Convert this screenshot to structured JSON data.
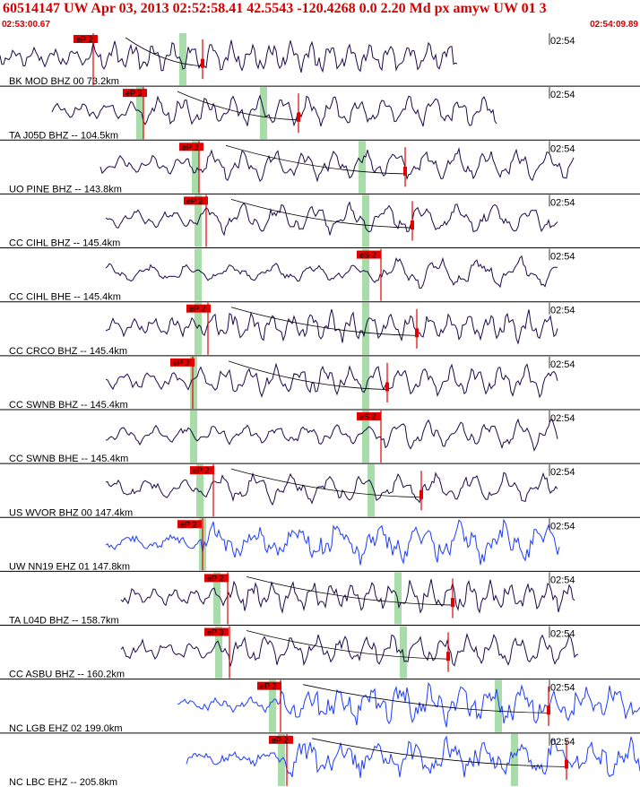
{
  "header": {
    "title": "60514147 UW Apr 03, 2013 02:52:58.41   42.5543 -120.4268  0.0 2.20 Md px amyw UW 01   3",
    "start_time": "02:53:00.67",
    "end_time": "02:54:09.89"
  },
  "colors": {
    "header_text": "#d40000",
    "trace_dark": "#1c0a4a",
    "trace_blue": "#1e3cff",
    "pick_red": "#e00000",
    "window_green": "#a8dca8"
  },
  "minute_label": "02:54",
  "traces": [
    {
      "label": "BK MOD BHZ 00 73.2km",
      "pick": "eP 2",
      "color": "dark"
    },
    {
      "label": "TA J05D BHZ -- 104.5km",
      "pick": "eP 3",
      "color": "dark"
    },
    {
      "label": "UO PINE BHZ -- 143.8km",
      "pick": "eP 2",
      "color": "dark"
    },
    {
      "label": "CC CIHL BHZ -- 145.4km",
      "pick": "eP 2",
      "color": "dark"
    },
    {
      "label": "CC CIHL BHE -- 145.4km",
      "pick": "eS 2",
      "color": "dark"
    },
    {
      "label": "CC CRCO BHZ -- 145.4km",
      "pick": "eP 2",
      "color": "dark"
    },
    {
      "label": "CC SWNB BHZ -- 145.4km",
      "pick": "eP 2",
      "color": "dark"
    },
    {
      "label": "CC SWNB BHE -- 145.4km",
      "pick": "eS 2",
      "color": "dark"
    },
    {
      "label": "US WVOR BHZ 00 147.4km",
      "pick": "eP 2",
      "color": "dark"
    },
    {
      "label": "UW NN19 EHZ 01 147.8km",
      "pick": "eP 2",
      "color": "blue"
    },
    {
      "label": "TA L04D BHZ -- 158.7km",
      "pick": "eP 2",
      "color": "dark"
    },
    {
      "label": "CC ASBU BHZ -- 160.2km",
      "pick": "eP 3",
      "color": "dark"
    },
    {
      "label": "NC LGB EHZ 02 199.0km",
      "pick": "eP 2",
      "color": "blue"
    },
    {
      "label": "NC LBC EHZ -- 205.8km",
      "pick": "eP 2",
      "color": "blue"
    }
  ]
}
